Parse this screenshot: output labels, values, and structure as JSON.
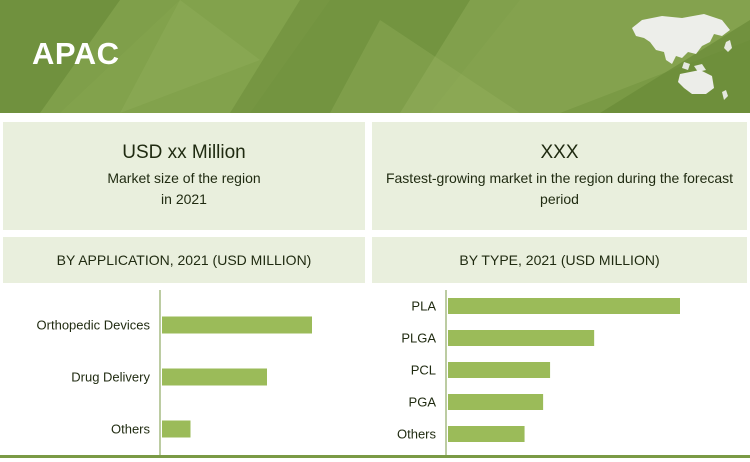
{
  "header": {
    "title": "APAC"
  },
  "stats": {
    "left": {
      "value": "USD xx Million",
      "label_line1": "Market size of the region",
      "label_line2": "in 2021"
    },
    "right": {
      "value": "XXX",
      "label_line1": "Fastest-growing market in the region during the forecast",
      "label_line2": "period"
    }
  },
  "sections": {
    "application_title": "BY APPLICATION, 2021  (USD MILLION)",
    "type_title": "BY TYPE, 2021 (USD MILLION)"
  },
  "colors": {
    "accent": "#7a9a45",
    "bar": "#9bbb59",
    "panel": "#e9efdd"
  },
  "icons": {
    "region_map": "apac-map-icon"
  },
  "chart_data": [
    {
      "type": "bar",
      "orientation": "horizontal",
      "title": "BY APPLICATION, 2021  (USD MILLION)",
      "categories": [
        "Orthopedic Devices",
        "Drug Delivery",
        "Others"
      ],
      "values": [
        100,
        70,
        19
      ],
      "xlim": [
        0,
        100
      ],
      "grid": false,
      "legend": "none"
    },
    {
      "type": "bar",
      "orientation": "horizontal",
      "title": "BY TYPE, 2021 (USD MILLION)",
      "categories": [
        "PLA",
        "PLGA",
        "PCL",
        "PGA",
        "Others"
      ],
      "values": [
        100,
        63,
        44,
        41,
        33
      ],
      "xlim": [
        0,
        100
      ],
      "grid": false,
      "legend": "none"
    }
  ]
}
